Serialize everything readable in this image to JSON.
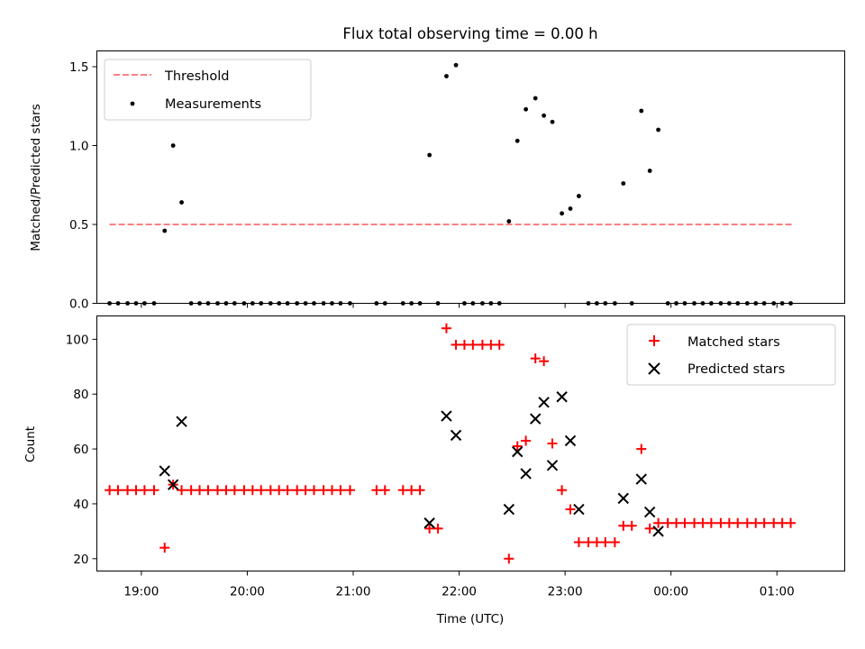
{
  "chart_data": [
    {
      "type": "scatter",
      "title": "Flux total observing time = 0.00 h",
      "ylabel": "Matched/Predicted stars",
      "xlabel": "",
      "ylim": [
        0,
        1.6
      ],
      "yticks": [
        0.0,
        0.5,
        1.0,
        1.5
      ],
      "ytick_labels": [
        "0.0",
        "0.5",
        "1.0",
        "1.5"
      ],
      "x_unit": "hours (UTC, continuing past midnight)",
      "xlim": [
        18.58,
        25.64
      ],
      "xticks": [
        19,
        20,
        21,
        22,
        23,
        24,
        25
      ],
      "grid": false,
      "legend_position": "upper left",
      "legend": [
        "Threshold",
        "Measurements"
      ],
      "threshold": {
        "name": "Threshold",
        "y": 0.5,
        "x_range": [
          18.7,
          25.15
        ],
        "color": "#ff0000",
        "alpha": 0.5,
        "style": "dashed"
      },
      "series": [
        {
          "name": "Measurements",
          "color": "#000000",
          "marker": "dot",
          "points": [
            [
              18.7,
              0
            ],
            [
              18.78,
              0
            ],
            [
              18.87,
              0
            ],
            [
              18.95,
              0
            ],
            [
              19.03,
              0
            ],
            [
              19.12,
              0
            ],
            [
              19.22,
              0.46
            ],
            [
              19.3,
              1.0
            ],
            [
              19.38,
              0.64
            ],
            [
              19.47,
              0
            ],
            [
              19.55,
              0
            ],
            [
              19.63,
              0
            ],
            [
              19.72,
              0
            ],
            [
              19.8,
              0
            ],
            [
              19.88,
              0
            ],
            [
              19.97,
              0
            ],
            [
              20.05,
              0
            ],
            [
              20.13,
              0
            ],
            [
              20.22,
              0
            ],
            [
              20.3,
              0
            ],
            [
              20.38,
              0
            ],
            [
              20.47,
              0
            ],
            [
              20.55,
              0
            ],
            [
              20.63,
              0
            ],
            [
              20.72,
              0
            ],
            [
              20.8,
              0
            ],
            [
              20.88,
              0
            ],
            [
              20.97,
              0
            ],
            [
              21.22,
              0
            ],
            [
              21.3,
              0
            ],
            [
              21.47,
              0
            ],
            [
              21.55,
              0
            ],
            [
              21.63,
              0
            ],
            [
              21.72,
              0.94
            ],
            [
              21.8,
              0
            ],
            [
              21.88,
              1.44
            ],
            [
              21.97,
              1.51
            ],
            [
              22.05,
              0
            ],
            [
              22.13,
              0
            ],
            [
              22.22,
              0
            ],
            [
              22.3,
              0
            ],
            [
              22.38,
              0
            ],
            [
              22.47,
              0.52
            ],
            [
              22.55,
              1.03
            ],
            [
              22.63,
              1.23
            ],
            [
              22.72,
              1.3
            ],
            [
              22.8,
              1.19
            ],
            [
              22.88,
              1.15
            ],
            [
              22.97,
              0.57
            ],
            [
              23.05,
              0.6
            ],
            [
              23.13,
              0.68
            ],
            [
              23.22,
              0
            ],
            [
              23.3,
              0
            ],
            [
              23.38,
              0
            ],
            [
              23.47,
              0
            ],
            [
              23.55,
              0.76
            ],
            [
              23.63,
              0
            ],
            [
              23.72,
              1.22
            ],
            [
              23.8,
              0.84
            ],
            [
              23.88,
              1.1
            ],
            [
              23.97,
              0
            ],
            [
              24.05,
              0
            ],
            [
              24.13,
              0
            ],
            [
              24.22,
              0
            ],
            [
              24.3,
              0
            ],
            [
              24.38,
              0
            ],
            [
              24.47,
              0
            ],
            [
              24.55,
              0
            ],
            [
              24.63,
              0
            ],
            [
              24.72,
              0
            ],
            [
              24.8,
              0
            ],
            [
              24.88,
              0
            ],
            [
              24.97,
              0
            ],
            [
              25.05,
              0
            ],
            [
              25.13,
              0
            ]
          ]
        }
      ]
    },
    {
      "type": "scatter",
      "title": "",
      "ylabel": "Count",
      "xlabel": "Time (UTC)",
      "ylim": [
        15.5,
        108.5
      ],
      "yticks": [
        20,
        40,
        60,
        80,
        100
      ],
      "ytick_labels": [
        "20",
        "40",
        "60",
        "80",
        "100"
      ],
      "x_unit": "hours (UTC, continuing past midnight)",
      "xlim": [
        18.58,
        25.64
      ],
      "xticks": [
        19,
        20,
        21,
        22,
        23,
        24,
        25
      ],
      "xtick_labels": [
        "19:00",
        "20:00",
        "21:00",
        "22:00",
        "23:00",
        "00:00",
        "01:00"
      ],
      "grid": false,
      "legend_position": "upper right",
      "legend": [
        "Matched stars",
        "Predicted stars"
      ],
      "series": [
        {
          "name": "Matched stars",
          "color": "#ff0000",
          "marker": "plus",
          "points": [
            [
              18.7,
              45
            ],
            [
              18.78,
              45
            ],
            [
              18.87,
              45
            ],
            [
              18.95,
              45
            ],
            [
              19.03,
              45
            ],
            [
              19.12,
              45
            ],
            [
              19.22,
              24
            ],
            [
              19.3,
              47
            ],
            [
              19.38,
              45
            ],
            [
              19.47,
              45
            ],
            [
              19.55,
              45
            ],
            [
              19.63,
              45
            ],
            [
              19.72,
              45
            ],
            [
              19.8,
              45
            ],
            [
              19.88,
              45
            ],
            [
              19.97,
              45
            ],
            [
              20.05,
              45
            ],
            [
              20.13,
              45
            ],
            [
              20.22,
              45
            ],
            [
              20.3,
              45
            ],
            [
              20.38,
              45
            ],
            [
              20.47,
              45
            ],
            [
              20.55,
              45
            ],
            [
              20.63,
              45
            ],
            [
              20.72,
              45
            ],
            [
              20.8,
              45
            ],
            [
              20.88,
              45
            ],
            [
              20.97,
              45
            ],
            [
              21.22,
              45
            ],
            [
              21.3,
              45
            ],
            [
              21.47,
              45
            ],
            [
              21.55,
              45
            ],
            [
              21.63,
              45
            ],
            [
              21.72,
              31
            ],
            [
              21.8,
              31
            ],
            [
              21.88,
              104
            ],
            [
              21.97,
              98
            ],
            [
              22.05,
              98
            ],
            [
              22.13,
              98
            ],
            [
              22.22,
              98
            ],
            [
              22.3,
              98
            ],
            [
              22.38,
              98
            ],
            [
              22.47,
              20
            ],
            [
              22.55,
              61
            ],
            [
              22.63,
              63
            ],
            [
              22.72,
              93
            ],
            [
              22.8,
              92
            ],
            [
              22.88,
              62
            ],
            [
              22.97,
              45
            ],
            [
              23.05,
              38
            ],
            [
              23.13,
              26
            ],
            [
              23.22,
              26
            ],
            [
              23.3,
              26
            ],
            [
              23.38,
              26
            ],
            [
              23.47,
              26
            ],
            [
              23.55,
              32
            ],
            [
              23.63,
              32
            ],
            [
              23.72,
              60
            ],
            [
              23.8,
              31
            ],
            [
              23.88,
              33
            ],
            [
              23.97,
              33
            ],
            [
              24.05,
              33
            ],
            [
              24.13,
              33
            ],
            [
              24.22,
              33
            ],
            [
              24.3,
              33
            ],
            [
              24.38,
              33
            ],
            [
              24.47,
              33
            ],
            [
              24.55,
              33
            ],
            [
              24.63,
              33
            ],
            [
              24.72,
              33
            ],
            [
              24.8,
              33
            ],
            [
              24.88,
              33
            ],
            [
              24.97,
              33
            ],
            [
              25.05,
              33
            ],
            [
              25.13,
              33
            ]
          ]
        },
        {
          "name": "Predicted stars",
          "color": "#000000",
          "marker": "x",
          "points": [
            [
              19.22,
              52
            ],
            [
              19.3,
              47
            ],
            [
              19.38,
              70
            ],
            [
              21.72,
              33
            ],
            [
              21.88,
              72
            ],
            [
              21.97,
              65
            ],
            [
              22.47,
              38
            ],
            [
              22.55,
              59
            ],
            [
              22.63,
              51
            ],
            [
              22.72,
              71
            ],
            [
              22.8,
              77
            ],
            [
              22.88,
              54
            ],
            [
              22.97,
              79
            ],
            [
              23.05,
              63
            ],
            [
              23.13,
              38
            ],
            [
              23.55,
              42
            ],
            [
              23.72,
              49
            ],
            [
              23.8,
              37
            ],
            [
              23.88,
              30
            ]
          ]
        }
      ]
    }
  ]
}
